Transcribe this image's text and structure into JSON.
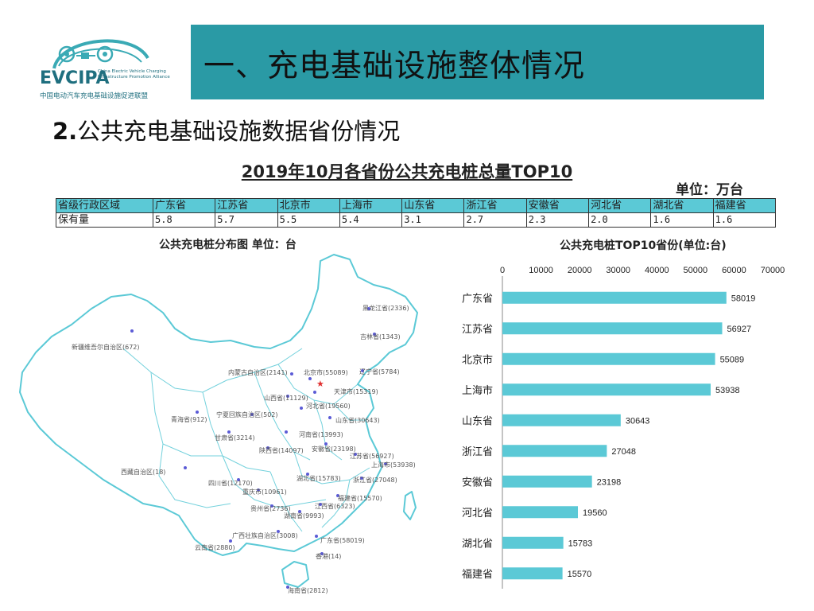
{
  "logo": {
    "text": "EVCIPA",
    "subtitle": "China Electric Vehicle Charging Infrastructure Promotion Alliance",
    "cn": "中国电动汽车充电基础设施促进联盟"
  },
  "header": {
    "title": "一、充电基础设施整体情况",
    "subtitle_num": "2.",
    "subtitle_text": "公共充电基础设施数据省份情况"
  },
  "table": {
    "title": "2019年10月各省份公共充电桩总量TOP10",
    "unit": "单位：万台",
    "header": [
      "省级行政区域",
      "广东省",
      "江苏省",
      "北京市",
      "上海市",
      "山东省",
      "浙江省",
      "安徽省",
      "河北省",
      "湖北省",
      "福建省"
    ],
    "row": [
      "保有量",
      "5.8",
      "5.7",
      "5.5",
      "5.4",
      "3.1",
      "2.7",
      "2.3",
      "2.0",
      "1.6",
      "1.6"
    ]
  },
  "map": {
    "title": "公共充电桩分布图  单位：台",
    "labels": [
      "黑龙江省(2336)",
      "吉林省(1343)",
      "辽宁省(5784)",
      "新疆维吾尔自治区(672)",
      "内蒙古自治区(2141)",
      "北京市(55089)",
      "天津市(15319)",
      "山西省(11129)",
      "河北省(19560)",
      "山东省(30643)",
      "青海省(912)",
      "宁夏回族自治区(502)",
      "甘肃省(3214)",
      "河南省(13993)",
      "陕西省(14097)",
      "安徽省(23198)",
      "江苏省(56927)",
      "上海市(53938)",
      "西藏自治区(18)",
      "湖北省(15783)",
      "浙江省(27048)",
      "四川省(12170)",
      "重庆市(10961)",
      "福建省(15570)",
      "贵州省(2736)",
      "江西省(6323)",
      "湖南省(9993)",
      "广西壮族自治区(3008)",
      "广东省(58019)",
      "云南省(2880)",
      "香港(14)",
      "海南省(2812)"
    ],
    "colors": {
      "border": "#5bc9d6",
      "dot": "#5b5bd6",
      "capital": "#e03030"
    }
  },
  "chart_data": {
    "type": "bar",
    "title": "公共充电桩TOP10省份(单位:台)",
    "orientation": "horizontal",
    "categories": [
      "广东省",
      "江苏省",
      "北京市",
      "上海市",
      "山东省",
      "浙江省",
      "安徽省",
      "河北省",
      "湖北省",
      "福建省"
    ],
    "values": [
      58019,
      56927,
      55089,
      53938,
      30643,
      27048,
      23198,
      19560,
      15783,
      15570
    ],
    "xlim": [
      0,
      70000
    ],
    "xticks": [
      "0",
      "10000",
      "20000",
      "30000",
      "40000",
      "50000",
      "60000",
      "70000"
    ],
    "bar_color": "#5bc9d6",
    "grid": false,
    "data_labels": true
  },
  "colors": {
    "accent": "#2a9aa5",
    "table_header": "#5bc9d6",
    "brand": "#1f6f7f"
  }
}
